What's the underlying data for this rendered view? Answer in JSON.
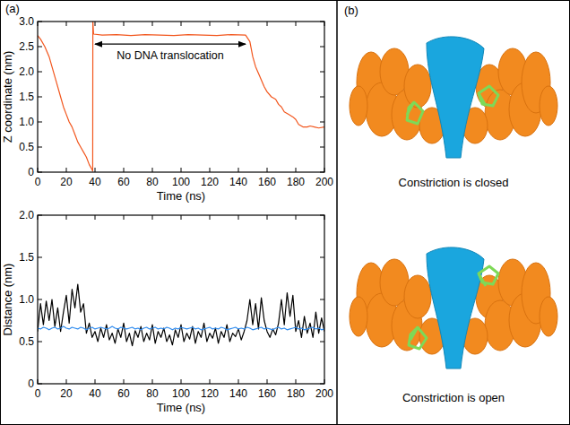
{
  "chart_data": [
    {
      "type": "line",
      "x_label": "Time (ns)",
      "y_label": "Z coordinate (nm)",
      "xlim": [
        0,
        200
      ],
      "xticks": [
        0,
        20,
        40,
        60,
        80,
        100,
        120,
        140,
        160,
        180,
        200
      ],
      "ylim": [
        0,
        3
      ],
      "yticks": [
        0,
        0.5,
        {
          "value": 1,
          "label": "1.0"
        },
        1.5,
        {
          "value": 2,
          "label": "2.0"
        },
        2.5,
        {
          "value": 3,
          "label": "3.0"
        }
      ],
      "x": [
        0,
        2,
        5,
        8,
        10,
        13,
        16,
        18,
        20,
        22,
        24,
        26,
        28,
        30,
        32,
        34,
        36,
        38,
        38.4,
        38.5,
        39,
        45,
        55,
        65,
        75,
        85,
        95,
        105,
        115,
        125,
        135,
        145,
        148,
        150,
        152,
        155,
        158,
        160,
        163,
        166,
        168,
        170,
        172,
        175,
        178,
        180,
        182,
        185,
        188,
        190,
        193,
        196,
        200
      ],
      "series": [
        {
          "color": "#f2561d",
          "values": [
            2.72,
            2.65,
            2.5,
            2.3,
            2.1,
            1.8,
            1.5,
            1.3,
            1.15,
            1.0,
            0.9,
            0.75,
            0.6,
            0.5,
            0.4,
            0.3,
            0.15,
            0.05,
            0.02,
            3.0,
            2.75,
            2.73,
            2.74,
            2.72,
            2.74,
            2.73,
            2.72,
            2.74,
            2.73,
            2.72,
            2.74,
            2.73,
            2.6,
            2.3,
            2.1,
            1.9,
            1.7,
            1.6,
            1.5,
            1.45,
            1.35,
            1.3,
            1.2,
            1.15,
            1.1,
            1.05,
            0.95,
            0.9,
            0.9,
            0.92,
            0.9,
            0.88,
            0.9
          ]
        }
      ],
      "annotations": [
        {
          "text": "No DNA translocation",
          "x": [
            40,
            145
          ],
          "y": 2.55
        }
      ]
    },
    {
      "type": "line",
      "x_label": "Time (ns)",
      "y_label": "Distance (nm)",
      "xlim": [
        0,
        200
      ],
      "xticks": [
        0,
        20,
        40,
        60,
        80,
        100,
        120,
        140,
        160,
        180,
        200
      ],
      "ylim": [
        0,
        2
      ],
      "yticks": [
        0,
        0.5,
        {
          "value": 1,
          "label": "1.0"
        },
        1.5,
        {
          "value": 2,
          "label": "2.0"
        }
      ],
      "x": [
        0,
        2,
        4,
        6,
        8,
        10,
        12,
        14,
        16,
        18,
        20,
        22,
        24,
        26,
        28,
        30,
        32,
        34,
        36,
        38,
        40,
        42,
        44,
        46,
        48,
        50,
        52,
        54,
        56,
        58,
        60,
        62,
        64,
        66,
        68,
        70,
        72,
        74,
        76,
        78,
        80,
        82,
        84,
        86,
        88,
        90,
        92,
        94,
        96,
        98,
        100,
        102,
        104,
        106,
        108,
        110,
        112,
        114,
        116,
        118,
        120,
        122,
        124,
        126,
        128,
        130,
        132,
        134,
        136,
        138,
        140,
        142,
        144,
        146,
        148,
        150,
        152,
        154,
        156,
        158,
        160,
        162,
        164,
        166,
        168,
        170,
        172,
        174,
        176,
        178,
        180,
        182,
        184,
        186,
        188,
        190,
        192,
        194,
        196,
        198,
        200
      ],
      "series": [
        {
          "color": "#000000",
          "values": [
            0.62,
            0.95,
            0.7,
            0.98,
            0.75,
            1.0,
            0.68,
            0.9,
            0.62,
            0.85,
            1.05,
            0.72,
            1.12,
            0.9,
            1.18,
            0.85,
            0.95,
            0.6,
            0.72,
            0.55,
            0.62,
            0.5,
            0.66,
            0.55,
            0.7,
            0.52,
            0.6,
            0.48,
            0.65,
            0.55,
            0.72,
            0.5,
            0.6,
            0.45,
            0.63,
            0.55,
            0.68,
            0.5,
            0.6,
            0.52,
            0.7,
            0.48,
            0.62,
            0.55,
            0.66,
            0.5,
            0.58,
            0.46,
            0.64,
            0.55,
            0.7,
            0.5,
            0.6,
            0.53,
            0.68,
            0.48,
            0.62,
            0.55,
            0.72,
            0.5,
            0.6,
            0.54,
            0.66,
            0.48,
            0.62,
            0.55,
            0.7,
            0.5,
            0.6,
            0.56,
            0.65,
            0.52,
            0.62,
            0.75,
            1.0,
            0.7,
            0.95,
            0.65,
            1.02,
            0.75,
            0.62,
            0.55,
            0.65,
            0.58,
            0.72,
            1.0,
            0.7,
            1.08,
            0.8,
            1.05,
            0.62,
            0.75,
            0.55,
            0.8,
            0.6,
            0.72,
            0.55,
            0.85,
            0.6,
            0.78,
            0.62
          ]
        },
        {
          "color": "#2e8bef",
          "values": [
            0.66,
            0.65,
            0.67,
            0.66,
            0.64,
            0.66,
            0.67,
            0.65,
            0.66,
            0.68,
            0.66,
            0.65,
            0.67,
            0.66,
            0.65,
            0.67,
            0.66,
            0.64,
            0.66,
            0.67,
            0.65,
            0.66,
            0.67,
            0.66,
            0.65,
            0.66,
            0.68,
            0.66,
            0.65,
            0.67,
            0.66,
            0.65,
            0.66,
            0.67,
            0.65,
            0.66,
            0.64,
            0.66,
            0.67,
            0.65,
            0.66,
            0.67,
            0.65,
            0.66,
            0.65,
            0.67,
            0.66,
            0.64,
            0.66,
            0.65,
            0.67,
            0.66,
            0.65,
            0.66,
            0.67,
            0.65,
            0.66,
            0.64,
            0.65,
            0.66,
            0.67,
            0.65,
            0.66,
            0.65,
            0.67,
            0.66,
            0.64,
            0.65,
            0.66,
            0.67,
            0.65,
            0.66,
            0.65,
            0.67,
            0.66,
            0.64,
            0.65,
            0.66,
            0.67,
            0.65,
            0.66,
            0.65,
            0.64,
            0.66,
            0.67,
            0.65,
            0.66,
            0.64,
            0.65,
            0.66,
            0.67,
            0.65,
            0.66,
            0.64,
            0.65,
            0.66,
            0.67,
            0.65,
            0.66,
            0.64,
            0.65
          ]
        }
      ]
    }
  ],
  "panels": [
    {
      "label": "(a)"
    },
    {
      "label": "(b)",
      "captions": [
        "Constriction is closed",
        "Constriction is open"
      ]
    }
  ]
}
